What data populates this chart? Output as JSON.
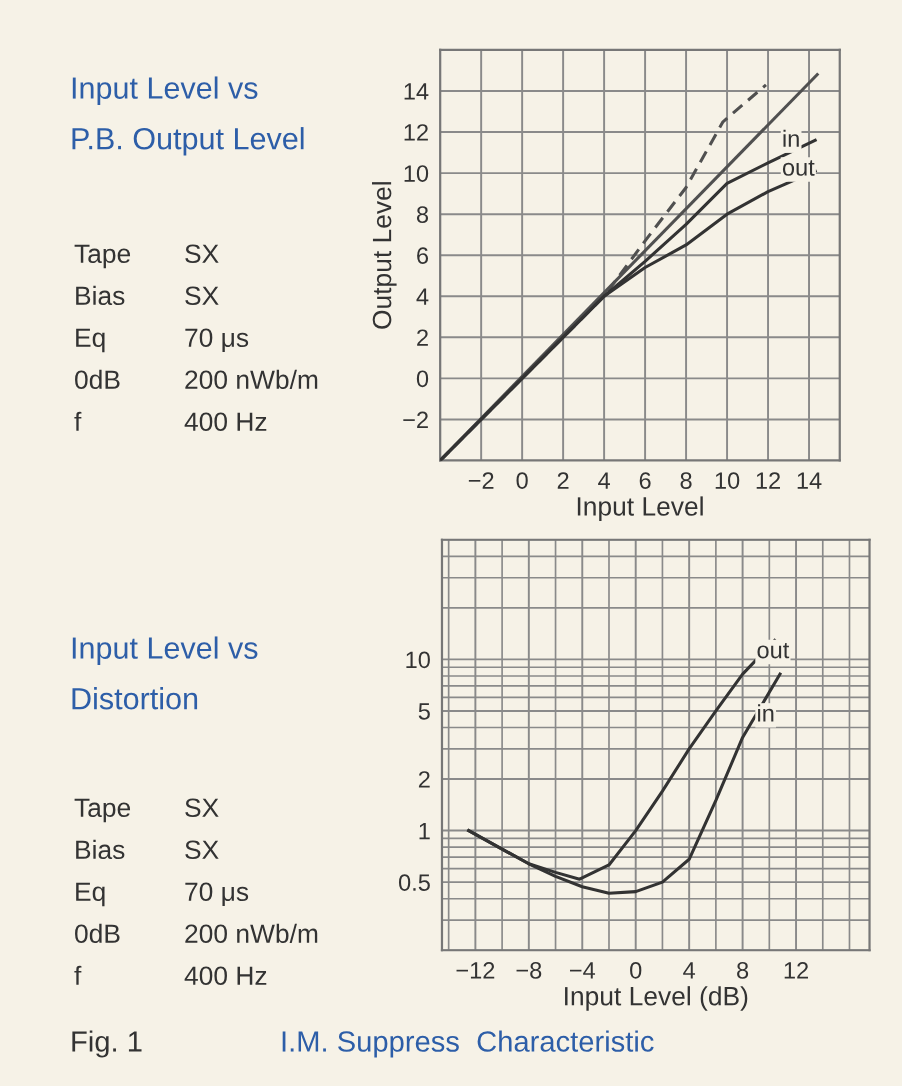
{
  "chart_data": [
    {
      "type": "line",
      "title": "Input Level vs\nP.B. Output Level",
      "xlabel": "Input Level",
      "ylabel": "Output Level",
      "xlim": [
        -4,
        15.5
      ],
      "ylim": [
        -4,
        16
      ],
      "xticks": [
        -2,
        0,
        2,
        4,
        6,
        8,
        10,
        12,
        14
      ],
      "yticks": [
        -2,
        0,
        2,
        4,
        6,
        8,
        10,
        12,
        14
      ],
      "grid": true,
      "series": [
        {
          "color": "#505050",
          "x": [
            -4,
            14.4
          ],
          "values": [
            -4,
            14.8
          ]
        },
        {
          "color": "#505050",
          "line_style": "dashed",
          "x": [
            -4,
            0,
            4,
            6,
            8,
            9.8,
            11.9
          ],
          "values": [
            -4,
            0,
            4,
            6.7,
            9.3,
            12.5,
            14.3
          ]
        },
        {
          "name": "in",
          "color": "#333333",
          "x": [
            -4,
            0,
            4,
            6,
            8,
            10,
            12,
            14.3
          ],
          "values": [
            -4,
            0,
            4,
            5.7,
            7.5,
            9.5,
            10.5,
            11.6
          ]
        },
        {
          "name": "out",
          "color": "#333333",
          "x": [
            -4,
            0,
            4,
            6,
            8,
            10,
            12,
            14.3
          ],
          "values": [
            -4,
            0,
            4,
            5.4,
            6.5,
            8.0,
            9.1,
            10.1
          ]
        }
      ],
      "annotations": [
        "Tape",
        "SX",
        "Bias",
        "SX",
        "Eq",
        "70 μs",
        "0dB",
        "200 nWb/m",
        "f",
        "400 Hz"
      ]
    },
    {
      "type": "line",
      "title": "Input Level vs\nDistortion",
      "xlabel": "Input Level (dB)",
      "log": "y",
      "xlim": [
        -14.5,
        17.5
      ],
      "ylim": [
        0.2,
        50
      ],
      "xticks": [
        -12,
        -8,
        -4,
        0,
        4,
        8,
        12
      ],
      "yticks": [
        0.5,
        1,
        2,
        5,
        10
      ],
      "grid": true,
      "series": [
        {
          "name": "out",
          "color": "#333333",
          "x": [
            -12.5,
            -10,
            -8,
            -6,
            -4.2,
            -2,
            0,
            2,
            4,
            6,
            8,
            10.4
          ],
          "values": [
            1.0,
            0.78,
            0.64,
            0.57,
            0.52,
            0.63,
            1.0,
            1.7,
            3.0,
            5.0,
            8.2,
            12.9
          ]
        },
        {
          "name": "in",
          "color": "#333333",
          "x": [
            -12.5,
            -10,
            -8,
            -6,
            -4,
            -2,
            0,
            2,
            4,
            6,
            8,
            10.8
          ],
          "values": [
            1.0,
            0.78,
            0.64,
            0.54,
            0.47,
            0.43,
            0.44,
            0.5,
            0.68,
            1.5,
            3.5,
            8.2
          ]
        }
      ],
      "annotations": [
        "Tape",
        "SX",
        "Bias",
        "SX",
        "Eq",
        "70 μs",
        "0dB",
        "200 nWb/m",
        "f",
        "400 Hz",
        "Fig. 1",
        "I.M. Suppress  Characteristic"
      ]
    }
  ]
}
